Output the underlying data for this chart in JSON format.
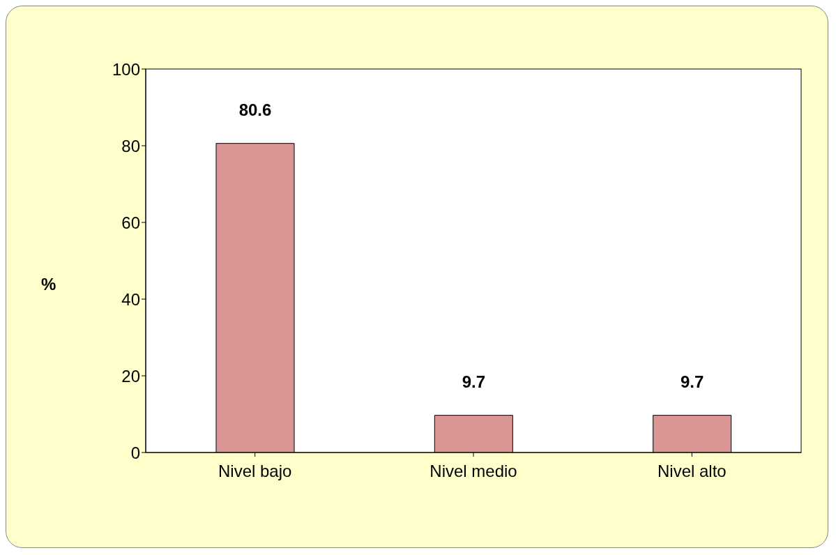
{
  "chart_data": {
    "type": "bar",
    "ylabel": "%",
    "categories": [
      "Nivel bajo",
      "Nivel medio",
      "Nivel alto"
    ],
    "values": [
      80.6,
      9.7,
      9.7
    ],
    "color": "#d99594",
    "ylim": [
      0,
      100
    ],
    "yticks": [
      0,
      20,
      40,
      60,
      80,
      100
    ],
    "data_labels": true
  }
}
